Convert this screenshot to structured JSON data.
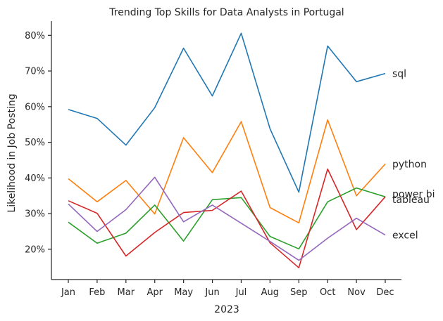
{
  "chart_data": {
    "type": "line",
    "title": "Trending Top Skills for Data Analysts in Portugal",
    "xlabel": "2023",
    "ylabel": "Likelihood in Job Posting",
    "categories": [
      "Jan",
      "Feb",
      "Mar",
      "Apr",
      "May",
      "Jun",
      "Jul",
      "Aug",
      "Sep",
      "Oct",
      "Nov",
      "Dec"
    ],
    "ylim": [
      11.5,
      84
    ],
    "yticks": [
      20,
      30,
      40,
      50,
      60,
      70,
      80
    ],
    "ytick_labels": [
      "20%",
      "30%",
      "40%",
      "50%",
      "60%",
      "70%",
      "80%"
    ],
    "grid": false,
    "legend": "none",
    "series": [
      {
        "name": "sql",
        "color": "#1f77b4",
        "values": [
          59.2,
          56.7,
          49.2,
          59.7,
          76.4,
          63.0,
          80.6,
          53.8,
          36.0,
          77.0,
          67.0,
          69.3
        ]
      },
      {
        "name": "python",
        "color": "#ff7f0e",
        "values": [
          39.8,
          33.3,
          39.3,
          29.9,
          51.3,
          41.5,
          55.8,
          31.7,
          27.4,
          56.3,
          35.0,
          43.9
        ]
      },
      {
        "name": "power bi",
        "color": "#2ca02c",
        "values": [
          27.6,
          21.7,
          24.5,
          32.4,
          22.3,
          33.9,
          34.5,
          23.6,
          20.1,
          33.3,
          37.2,
          34.7
        ]
      },
      {
        "name": "tableau",
        "color": "#d62728",
        "values": [
          33.6,
          30.1,
          18.1,
          24.7,
          30.3,
          30.9,
          36.3,
          21.8,
          14.8,
          42.5,
          25.5,
          34.7
        ]
      },
      {
        "name": "excel",
        "color": "#9467bd",
        "values": [
          32.7,
          25.0,
          31.1,
          40.2,
          27.7,
          32.4,
          27.3,
          22.2,
          16.9,
          23.1,
          28.7,
          24.0
        ]
      }
    ]
  }
}
